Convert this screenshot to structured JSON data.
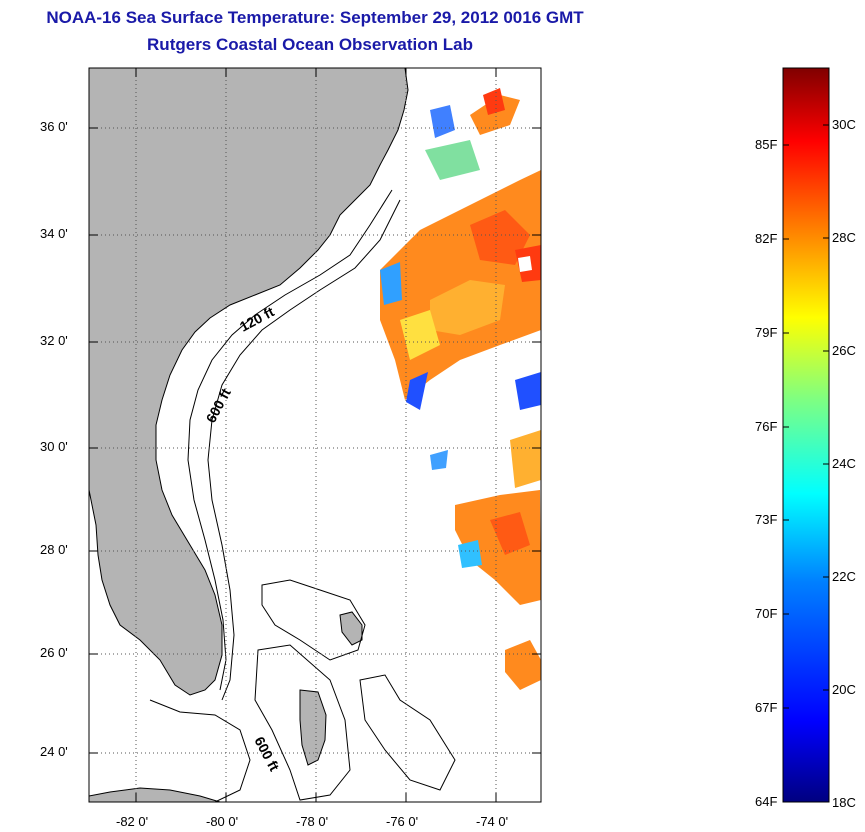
{
  "titles": {
    "main": "NOAA-16 Sea Surface Temperature:  September 29, 2012 0016 GMT",
    "sub": "Rutgers Coastal Ocean Observation Lab"
  },
  "map": {
    "lat_ticks": [
      "36 0'",
      "34 0'",
      "32 0'",
      "30 0'",
      "28 0'",
      "26 0'",
      "24 0'"
    ],
    "lon_ticks": [
      "-82 0'",
      "-80 0'",
      "-78 0'",
      "-76 0'",
      "-74 0'"
    ],
    "contours": [
      "120 ft",
      "600 ft",
      "600 ft"
    ],
    "colors": {
      "land": "#b4b4b4",
      "ocean": "#ffffff"
    }
  },
  "colorbar": {
    "fahrenheit": [
      "85F",
      "82F",
      "79F",
      "76F",
      "73F",
      "70F",
      "67F",
      "64F"
    ],
    "celsius": [
      "30C",
      "28C",
      "26C",
      "24C",
      "22C",
      "20C",
      "18C"
    ],
    "gradient": [
      "#000080",
      "#0000ff",
      "#0080ff",
      "#00ffff",
      "#80ff80",
      "#ffff00",
      "#ff8000",
      "#ff0000",
      "#800000"
    ]
  }
}
